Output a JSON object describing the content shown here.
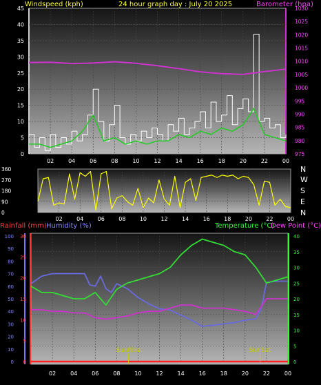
{
  "header": {
    "wind_label": "Windspeed (kph)",
    "title": "24 hour graph day : July 20 2025",
    "baro_label": "Barometer (hpa)"
  },
  "middle": {
    "compass": [
      "N",
      "W",
      "S",
      "E",
      "N"
    ]
  },
  "lower_header": {
    "rain_label": "Rainfall (mm)",
    "humidity_label": "Humidity (%)",
    "temp_label": "Temperature (°C)",
    "dew_label": "Dew Point (°C)"
  },
  "markers": {
    "sunrise_label": "SunRise",
    "sunset_label": "SunSet"
  },
  "colors": {
    "wind": "#ffffff",
    "wind_avg": "#22cc22",
    "baro": "#cc33cc",
    "winddir": "#ffff00",
    "humidity": "#6a6ae0",
    "temp": "#33dd33",
    "dew": "#cc33cc",
    "rain": "#ff2020",
    "header_yellow": "#ffff33",
    "header_magenta": "#ff44ff",
    "rain_axis": "#ff4444",
    "hum_axis": "#8888ff",
    "temp_axis": "#33ff33",
    "sun": "#cccc00"
  },
  "chart_data": [
    {
      "type": "line",
      "id": "wind_baro",
      "x_ticks": [
        "02",
        "04",
        "06",
        "08",
        "10",
        "12",
        "14",
        "16",
        "18",
        "20",
        "22",
        "00"
      ],
      "y_left_ticks": [
        "0",
        "5",
        "10",
        "15",
        "20",
        "25",
        "30",
        "35",
        "40",
        "45"
      ],
      "y_right_ticks": [
        "975",
        "980",
        "985",
        "990",
        "995",
        "1000",
        "1005",
        "1010",
        "1015",
        "1020",
        "1025",
        "1030"
      ],
      "ylim_left": [
        0,
        45
      ],
      "ylim_right": [
        975,
        1030
      ],
      "series": [
        {
          "name": "Windspeed (kph)",
          "axis": "left",
          "x": [
            0,
            0.5,
            1,
            1.5,
            2,
            2.5,
            3,
            3.5,
            4,
            4.5,
            5,
            5.5,
            6,
            6.5,
            7,
            7.5,
            8,
            8.5,
            9,
            9.5,
            10,
            10.5,
            11,
            11.5,
            12,
            12.5,
            13,
            13.5,
            14,
            14.5,
            15,
            15.5,
            16,
            16.5,
            17,
            17.5,
            18,
            18.5,
            19,
            19.5,
            20,
            20.5,
            21,
            21.5,
            22,
            22.5,
            23,
            23.5,
            24
          ],
          "y": [
            6,
            2,
            5,
            1,
            6,
            2,
            5,
            3,
            7,
            4,
            6,
            12,
            20,
            10,
            4,
            9,
            15,
            5,
            3,
            6,
            4,
            7,
            5,
            8,
            6,
            4,
            9,
            7,
            11,
            6,
            8,
            10,
            13,
            8,
            16,
            10,
            12,
            18,
            9,
            14,
            17,
            13,
            37,
            10,
            11,
            8,
            9,
            5,
            6
          ]
        },
        {
          "name": "Wind average",
          "axis": "left",
          "x": [
            0,
            1,
            2,
            3,
            4,
            5,
            6,
            7,
            8,
            9,
            10,
            11,
            12,
            13,
            14,
            15,
            16,
            17,
            18,
            19,
            20,
            21,
            22,
            23,
            24
          ],
          "y": [
            3,
            3,
            2,
            3,
            4,
            7,
            12,
            4,
            5,
            3,
            4,
            3,
            4,
            4,
            6,
            5,
            7,
            6,
            8,
            7,
            9,
            14,
            6,
            5,
            4
          ]
        },
        {
          "name": "Barometer (hpa)",
          "axis": "right",
          "x": [
            0,
            2,
            4,
            6,
            8,
            10,
            12,
            14,
            16,
            18,
            20,
            22,
            24
          ],
          "y": [
            1009.5,
            1009.6,
            1009.1,
            1009.3,
            1009.8,
            1009.2,
            1008.3,
            1007.2,
            1006.0,
            1005.3,
            1005.0,
            1006.1,
            1007.0
          ]
        }
      ]
    },
    {
      "type": "line",
      "id": "wind_direction",
      "x_ticks": [
        "02",
        "04",
        "06",
        "08",
        "10",
        "12",
        "14",
        "16",
        "18",
        "20",
        "22",
        "00"
      ],
      "y_ticks": [
        "0",
        "90",
        "180",
        "270",
        "360"
      ],
      "ylim": [
        0,
        360
      ],
      "series": [
        {
          "name": "Wind direction",
          "x": [
            0,
            0.5,
            1,
            1.5,
            2,
            2.5,
            3,
            3.5,
            4,
            4.5,
            5,
            5.5,
            6,
            6.5,
            7,
            7.5,
            8,
            8.5,
            9,
            9.5,
            10,
            10.5,
            11,
            11.5,
            12,
            12.5,
            13,
            13.5,
            14,
            14.5,
            15,
            15.5,
            16,
            16.5,
            17,
            17.5,
            18,
            18.5,
            19,
            19.5,
            20,
            20.5,
            21,
            21.5,
            22,
            22.5,
            23,
            23.5,
            24
          ],
          "y": [
            90,
            280,
            290,
            60,
            80,
            70,
            320,
            110,
            330,
            300,
            340,
            20,
            320,
            340,
            30,
            120,
            140,
            90,
            60,
            200,
            40,
            120,
            80,
            270,
            110,
            60,
            300,
            40,
            250,
            280,
            100,
            290,
            300,
            310,
            290,
            310,
            300,
            310,
            280,
            300,
            290,
            230,
            60,
            260,
            250,
            60,
            110,
            50,
            40
          ]
        }
      ]
    },
    {
      "type": "line",
      "id": "temp_humidity_rain",
      "x_ticks": [
        "02",
        "04",
        "06",
        "08",
        "10",
        "12",
        "14",
        "16",
        "18",
        "20",
        "22",
        "00"
      ],
      "y_hum_ticks": [
        "0",
        "10",
        "20",
        "30",
        "40",
        "50",
        "60",
        "70",
        "80",
        "90",
        "100"
      ],
      "y_rain_ticks": [
        "0",
        "5",
        "10",
        "15",
        "20",
        "25",
        "30"
      ],
      "y_temp_ticks": [
        "0",
        "5",
        "10",
        "15",
        "20",
        "25",
        "30",
        "35",
        "40"
      ],
      "ylim_hum": [
        0,
        100
      ],
      "ylim_rain": [
        0,
        30
      ],
      "ylim_temp": [
        0,
        40
      ],
      "series": [
        {
          "name": "Humidity (%)",
          "axis": "hum",
          "x": [
            0,
            1,
            2,
            3,
            4,
            5,
            5.5,
            6,
            6.5,
            7,
            7.5,
            8,
            9,
            10,
            11,
            12,
            13,
            14,
            15,
            16,
            17,
            18,
            19,
            20,
            21,
            21.5,
            22,
            23,
            24
          ],
          "y": [
            62,
            68,
            70,
            70,
            70,
            70,
            61,
            60,
            68,
            58,
            55,
            62,
            58,
            51,
            46,
            42,
            41,
            37,
            33,
            28,
            29,
            30,
            31,
            33,
            34,
            42,
            63,
            64,
            64
          ]
        },
        {
          "name": "Temperature (°C)",
          "axis": "temp",
          "x": [
            0,
            1,
            2,
            3,
            4,
            5,
            6,
            7,
            8,
            9,
            10,
            11,
            12,
            13,
            14,
            15,
            16,
            17,
            18,
            19,
            20,
            21,
            22,
            23,
            24
          ],
          "y": [
            24,
            22,
            22,
            21,
            20,
            20,
            22,
            18,
            23,
            25,
            26,
            27,
            28,
            30,
            34,
            37,
            39,
            38,
            37,
            35,
            34,
            30,
            25,
            26,
            27
          ]
        },
        {
          "name": "Dew Point (°C)",
          "axis": "temp",
          "x": [
            0,
            1,
            2,
            3,
            4,
            5,
            6,
            7,
            8,
            9,
            10,
            11,
            12,
            13,
            14,
            15,
            16,
            17,
            18,
            19,
            20,
            21,
            22,
            23,
            24
          ],
          "y": [
            16.5,
            16.5,
            16,
            16,
            15.5,
            15.5,
            14,
            13.5,
            14,
            14.5,
            15.5,
            16,
            16,
            17,
            18,
            18,
            17,
            17,
            17,
            16.5,
            16,
            15,
            20,
            20,
            20
          ]
        },
        {
          "name": "Rainfall (mm)",
          "axis": "rain",
          "x": [
            0,
            24
          ],
          "y": [
            0,
            0
          ]
        }
      ],
      "annotations": [
        {
          "label": "SunRise",
          "x": 9.1
        },
        {
          "label": "SunSet",
          "x": 21.4
        }
      ]
    }
  ]
}
